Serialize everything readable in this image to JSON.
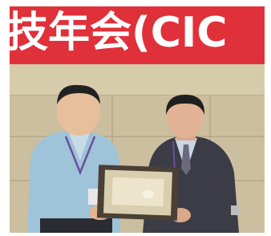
{
  "banner": {
    "text": "技年会(CIC"
  }
}
